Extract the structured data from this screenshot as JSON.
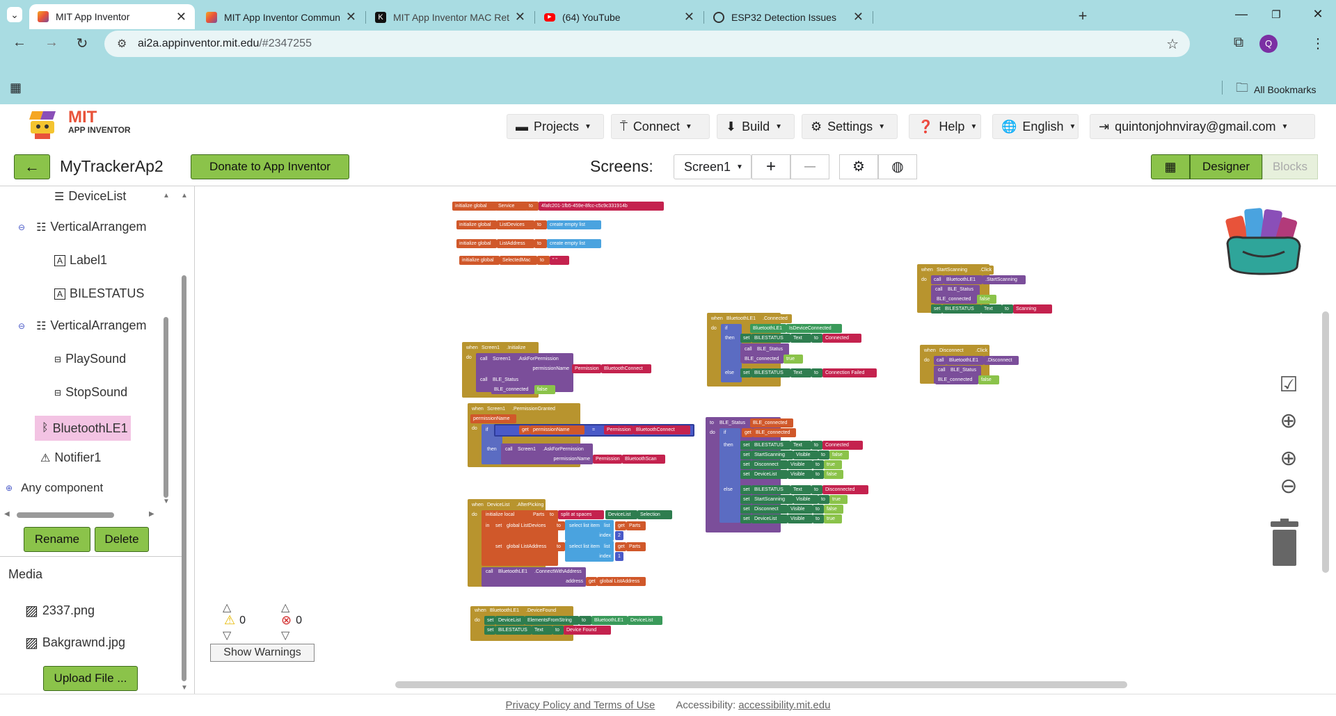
{
  "browser": {
    "tabs": [
      {
        "title": "MIT App Inventor",
        "active": true
      },
      {
        "title": "MIT App Inventor Community"
      },
      {
        "title": "MIT App Inventor MAC Retrieva"
      },
      {
        "title": "(64) YouTube"
      },
      {
        "title": "ESP32 Detection Issues"
      }
    ],
    "url_host": "ai2a.appinventor.mit.edu",
    "url_path": "/#2347255",
    "profile_initial": "Q",
    "bookmarks_label": "All Bookmarks"
  },
  "app": {
    "logo_title": "MIT",
    "logo_subtitle": "APP INVENTOR",
    "menus": {
      "projects": "Projects",
      "connect": "Connect",
      "build": "Build",
      "settings": "Settings",
      "help": "Help",
      "language": "English",
      "account": "quintonjohnviray@gmail.com"
    },
    "project_name": "MyTrackerAp2",
    "donate_label": "Donate to App Inventor",
    "screens_label": "Screens:",
    "screen_selected": "Screen1",
    "add_screen": "+",
    "remove_screen": "—",
    "designer_label": "Designer",
    "blocks_label": "Blocks"
  },
  "components": {
    "items": [
      {
        "name": "DeviceList",
        "icon": "listview-icon"
      },
      {
        "name": "VerticalArrangem",
        "icon": "arrangement-icon"
      },
      {
        "name": "Label1",
        "icon": "label-icon"
      },
      {
        "name": "BILESTATUS",
        "icon": "label-icon"
      },
      {
        "name": "VerticalArrangem",
        "icon": "arrangement-icon"
      },
      {
        "name": "PlaySound",
        "icon": "button-icon"
      },
      {
        "name": "StopSound",
        "icon": "button-icon"
      },
      {
        "name": "BluetoothLE1",
        "icon": "bluetooth-icon",
        "selected": true
      },
      {
        "name": "Notifier1",
        "icon": "warning-icon"
      }
    ],
    "any_component": "Any component",
    "rename_label": "Rename",
    "delete_label": "Delete",
    "media_label": "Media",
    "media_files": [
      "2337.png",
      "Bakgrawnd.jpg"
    ],
    "upload_label": "Upload File ..."
  },
  "warnings": {
    "warning_count": "0",
    "error_count": "0",
    "show_warnings_label": "Show Warnings"
  },
  "blocks": {
    "g1": [
      "initialize global",
      "Service",
      "to",
      "4fafc201-1fb5-459e-8fcc-c5c9c331914b"
    ],
    "g2": [
      "initialize global",
      "ListDevices",
      "to",
      "create empty list"
    ],
    "g3": [
      "initialize global",
      "ListAddress",
      "to",
      "create empty list"
    ],
    "g4": [
      "initialize global",
      "SelectedMac",
      "to",
      "\" \""
    ],
    "init": [
      "when",
      "Screen1",
      ".Initialize",
      "do",
      "call",
      "Screen1",
      ".AskForPermission",
      "permissionName",
      "Permission",
      "BluetoothConnect",
      "call",
      "BLE_Status",
      "BLE_connected",
      "false"
    ],
    "granted": [
      "when",
      "Screen1",
      ".PermissionGranted",
      "permissionName",
      "do",
      "if",
      "get",
      "permissionName",
      "=",
      "Permission",
      "BluetoothConnect",
      "then",
      "call",
      "Screen1",
      ".AskForPermission",
      "permissionName",
      "Permission",
      "BluetoothScan"
    ],
    "picking": [
      "when",
      "DeviceList",
      ".AfterPicking",
      "do",
      "initialize local",
      "Parts",
      "to",
      "split at spaces",
      "DeviceList",
      "Selection",
      "in",
      "set",
      "global ListDevices",
      "to",
      "select list item",
      "list",
      "get",
      "Parts",
      "index",
      "2",
      "set",
      "global ListAddress",
      "to",
      "select list item",
      "list",
      "get",
      "Parts",
      "index",
      "1",
      "call",
      "BluetoothLE1",
      ".ConnectWithAddress",
      "address",
      "get",
      "global ListAddress"
    ],
    "found": [
      "when",
      "BluetoothLE1",
      ".DeviceFound",
      "do",
      "set",
      "DeviceList",
      "ElementsFromString",
      "to",
      "BluetoothLE1",
      "DeviceList",
      "set",
      "BILESTATUS",
      "Text",
      "to",
      "Device Found"
    ],
    "connected": [
      "when",
      "BluetoothLE1",
      ".Connected",
      "do",
      "if",
      "BluetoothLE1",
      "IsDeviceConnected",
      "then",
      "set",
      "BILESTATUS",
      "Text",
      "to",
      "Connected",
      "call",
      "BLE_Status",
      "BLE_connected",
      "true",
      "else",
      "set",
      "BILESTATUS",
      "Text",
      "to",
      "Connection Failed"
    ],
    "status": [
      "to",
      "BLE_Status",
      "BLE_connected",
      "do",
      "if",
      "get",
      "BLE_connected",
      "then",
      "set",
      "BILESTATUS",
      "Text",
      "to",
      "Connected",
      "set",
      "StartScanning",
      "Visible",
      "to",
      "false",
      "set",
      "Disconnect",
      "Visible",
      "to",
      "true",
      "set",
      "DeviceList",
      "Visible",
      "to",
      "false",
      "else",
      "set",
      "BILESTATUS",
      "Text",
      "to",
      "Disconnected",
      "set",
      "StartScanning",
      "Visible",
      "to",
      "true",
      "set",
      "Disconnect",
      "Visible",
      "to",
      "false",
      "set",
      "DeviceList",
      "Visible",
      "to",
      "true"
    ],
    "scan": [
      "when",
      "StartScanning",
      ".Click",
      "do",
      "call",
      "BluetoothLE1",
      ".StartScanning",
      "call",
      "BLE_Status",
      "BLE_connected",
      "false",
      "set",
      "BILESTATUS",
      "Text",
      "to",
      "Scanning"
    ],
    "disc": [
      "when",
      "Disconnect",
      ".Click",
      "do",
      "call",
      "BluetoothLE1",
      ".Disconnect",
      "call",
      "BLE_Status",
      "BLE_connected",
      "false"
    ]
  },
  "footer": {
    "privacy": "Privacy Policy and Terms of Use",
    "accessibility_label": "Accessibility:",
    "accessibility_link": "accessibility.mit.edu"
  },
  "colors": {
    "chrome_bg": "#a9dce2",
    "accent_green": "#8bc34a",
    "event_block": "#b8942e",
    "call_block": "#7b4e9a",
    "set_block": "#2e7d4f",
    "global_block": "#d0582a",
    "text_block": "#c4224e",
    "list_block": "#4aa3df",
    "logic_block": "#8bc34a"
  }
}
